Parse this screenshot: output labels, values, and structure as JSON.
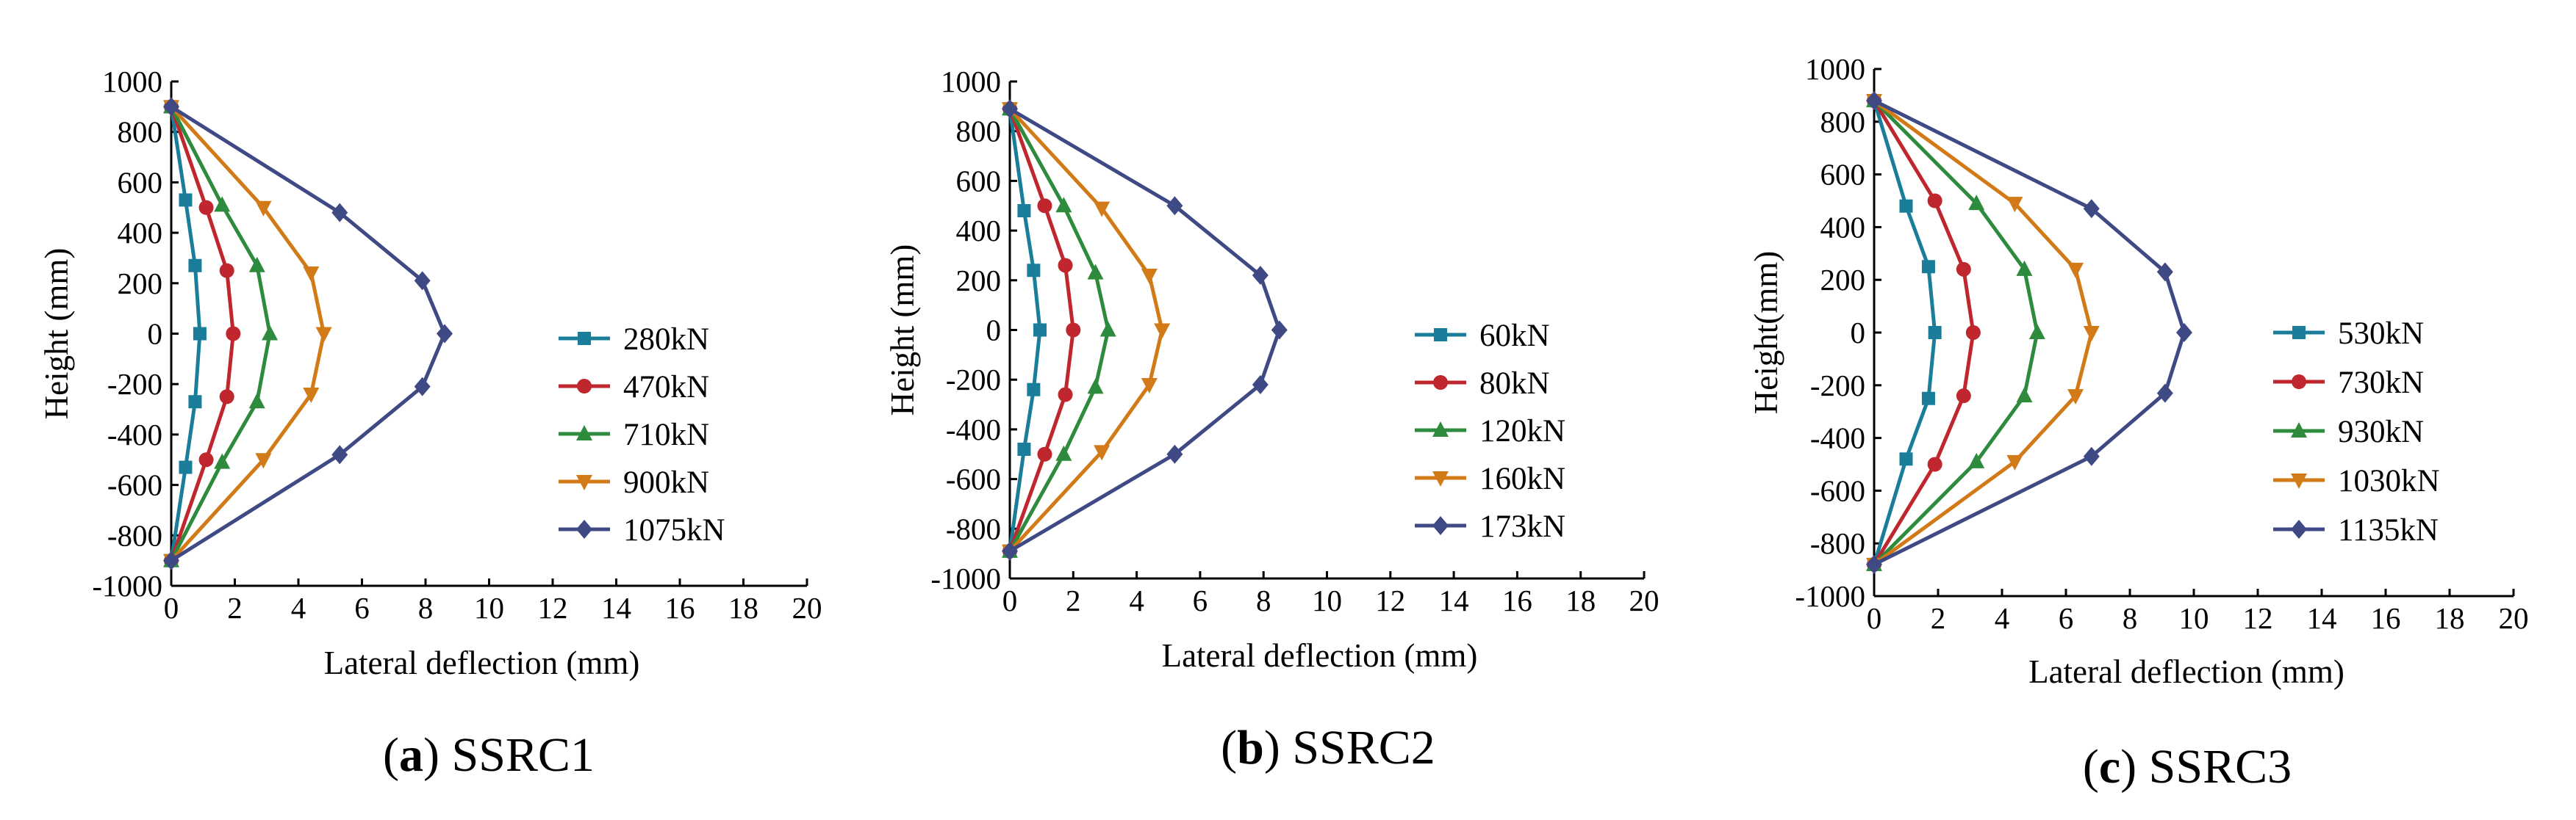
{
  "colors": {
    "s1": "#1a7e9a",
    "s2": "#c0262d",
    "s3": "#2e8b3d",
    "s4": "#d17a17",
    "s5": "#3f4a85"
  },
  "chart_data": [
    {
      "type": "line",
      "caption_letter": "a",
      "caption_name": "SSRC1",
      "xlabel": "Lateral deflection (mm)",
      "ylabel": "Height (mm)",
      "xlim": [
        0,
        20
      ],
      "ylim": [
        -1000,
        1000
      ],
      "xticks": [
        "0",
        "2",
        "4",
        "6",
        "8",
        "10",
        "12",
        "14",
        "16",
        "18",
        "20"
      ],
      "yticks": [
        "1000",
        "800",
        "600",
        "400",
        "200",
        "0",
        "-200",
        "-400",
        "-600",
        "-800",
        "-1000"
      ],
      "y": [
        900,
        530,
        270,
        0,
        -270,
        -530,
        -900
      ],
      "series": [
        {
          "name": "280kN",
          "marker": "square",
          "x": [
            0,
            0.45,
            0.75,
            0.9,
            0.75,
            0.45,
            0
          ],
          "y": [
            900,
            530,
            270,
            0,
            -270,
            -530,
            -900
          ]
        },
        {
          "name": "470kN",
          "marker": "circle",
          "x": [
            0,
            1.1,
            1.75,
            1.95,
            1.75,
            1.1,
            0
          ],
          "y": [
            900,
            500,
            250,
            0,
            -250,
            -500,
            -900
          ]
        },
        {
          "name": "710kN",
          "marker": "triangle-up",
          "x": [
            0,
            1.6,
            2.7,
            3.1,
            2.7,
            1.6,
            0
          ],
          "y": [
            900,
            510,
            270,
            0,
            -270,
            -510,
            -900
          ]
        },
        {
          "name": "900kN",
          "marker": "triangle-down",
          "x": [
            0,
            2.9,
            4.4,
            4.8,
            4.4,
            2.9,
            0
          ],
          "y": [
            900,
            500,
            240,
            0,
            -240,
            -500,
            -900
          ]
        },
        {
          "name": "1075kN",
          "marker": "diamond",
          "x": [
            0,
            5.3,
            7.9,
            8.6,
            7.9,
            5.3,
            0
          ],
          "y": [
            900,
            480,
            210,
            0,
            -210,
            -480,
            -900
          ]
        }
      ]
    },
    {
      "type": "line",
      "caption_letter": "b",
      "caption_name": "SSRC2",
      "xlabel": "Lateral deflection (mm)",
      "ylabel": "Height (mm)",
      "xlim": [
        0,
        20
      ],
      "ylim": [
        -1000,
        1000
      ],
      "xticks": [
        "0",
        "2",
        "4",
        "6",
        "8",
        "10",
        "12",
        "14",
        "16",
        "18",
        "20"
      ],
      "yticks": [
        "1000",
        "800",
        "600",
        "400",
        "200",
        "0",
        "-200",
        "-400",
        "-600",
        "-800",
        "-1000"
      ],
      "series": [
        {
          "name": "60kN",
          "marker": "square",
          "x": [
            0,
            0.45,
            0.75,
            0.95,
            0.75,
            0.45,
            0
          ],
          "y": [
            890,
            480,
            240,
            0,
            -240,
            -480,
            -890
          ]
        },
        {
          "name": "80kN",
          "marker": "circle",
          "x": [
            0,
            1.1,
            1.75,
            2.0,
            1.75,
            1.1,
            0
          ],
          "y": [
            890,
            500,
            260,
            0,
            -260,
            -500,
            -890
          ]
        },
        {
          "name": "120kN",
          "marker": "triangle-up",
          "x": [
            0,
            1.7,
            2.7,
            3.1,
            2.7,
            1.7,
            0
          ],
          "y": [
            890,
            500,
            230,
            0,
            -230,
            -500,
            -890
          ]
        },
        {
          "name": "160kN",
          "marker": "triangle-down",
          "x": [
            0,
            2.9,
            4.4,
            4.8,
            4.4,
            2.9,
            0
          ],
          "y": [
            890,
            490,
            220,
            0,
            -220,
            -490,
            -890
          ]
        },
        {
          "name": "173kN",
          "marker": "diamond",
          "x": [
            0,
            5.2,
            7.9,
            8.5,
            7.9,
            5.2,
            0
          ],
          "y": [
            890,
            500,
            220,
            0,
            -220,
            -500,
            -890
          ]
        }
      ]
    },
    {
      "type": "line",
      "caption_letter": "c",
      "caption_name": "SSRC3",
      "xlabel": "Lateral deflection (mm)",
      "ylabel": "Height(mm)",
      "xlim": [
        0,
        20
      ],
      "ylim": [
        -1000,
        1000
      ],
      "xticks": [
        "0",
        "2",
        "4",
        "6",
        "8",
        "10",
        "12",
        "14",
        "16",
        "18",
        "20"
      ],
      "yticks": [
        "1000",
        "800",
        "600",
        "400",
        "200",
        "0",
        "-200",
        "-400",
        "-600",
        "-800",
        "-1000"
      ],
      "series": [
        {
          "name": "530kN",
          "marker": "square",
          "x": [
            0,
            1.0,
            1.7,
            1.9,
            1.7,
            1.0,
            0
          ],
          "y": [
            880,
            480,
            250,
            0,
            -250,
            -480,
            -880
          ]
        },
        {
          "name": "730kN",
          "marker": "circle",
          "x": [
            0,
            1.9,
            2.8,
            3.1,
            2.8,
            1.9,
            0
          ],
          "y": [
            880,
            500,
            240,
            0,
            -240,
            -500,
            -880
          ]
        },
        {
          "name": "930kN",
          "marker": "triangle-up",
          "x": [
            0,
            3.2,
            4.7,
            5.1,
            4.7,
            3.2,
            0
          ],
          "y": [
            880,
            490,
            240,
            0,
            -240,
            -490,
            -880
          ]
        },
        {
          "name": "1030kN",
          "marker": "triangle-down",
          "x": [
            0,
            4.4,
            6.3,
            6.8,
            6.3,
            4.4,
            0
          ],
          "y": [
            880,
            490,
            240,
            0,
            -240,
            -490,
            -880
          ]
        },
        {
          "name": "1135kN",
          "marker": "diamond",
          "x": [
            0,
            6.8,
            9.1,
            9.7,
            9.1,
            6.8,
            0
          ],
          "y": [
            880,
            470,
            230,
            0,
            -230,
            -470,
            -880
          ]
        }
      ]
    }
  ]
}
